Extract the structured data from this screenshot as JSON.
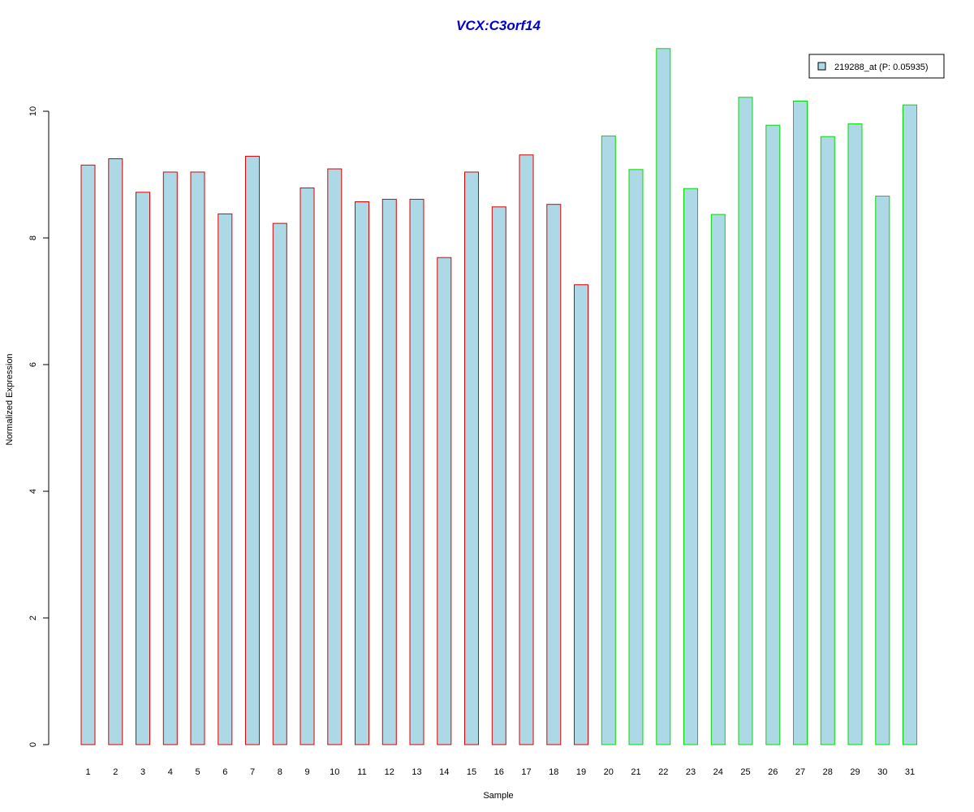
{
  "chart_data": {
    "type": "bar",
    "title": "VCX:C3orf14",
    "xlabel": "Sample",
    "ylabel": "Normalized Expression",
    "categories": [
      "1",
      "2",
      "3",
      "4",
      "5",
      "6",
      "7",
      "8",
      "9",
      "10",
      "11",
      "12",
      "13",
      "14",
      "15",
      "16",
      "17",
      "18",
      "19",
      "20",
      "21",
      "22",
      "23",
      "24",
      "25",
      "26",
      "27",
      "28",
      "29",
      "30",
      "31"
    ],
    "series": [
      {
        "name": "219288_at (P: 0.05935)",
        "values": [
          9.15,
          9.25,
          8.72,
          9.04,
          9.04,
          8.38,
          9.29,
          8.23,
          8.79,
          9.09,
          8.57,
          8.61,
          8.61,
          7.69,
          9.04,
          8.49,
          9.31,
          8.53,
          7.26,
          9.61,
          9.08,
          10.99,
          8.78,
          8.37,
          10.22,
          9.78,
          10.16,
          9.6,
          9.8,
          8.66,
          10.1
        ]
      }
    ],
    "groups": [
      {
        "samples": [
          1,
          19
        ],
        "border_color": "#dd0000"
      },
      {
        "samples": [
          20,
          31
        ],
        "border_color": "#00dd00"
      }
    ],
    "ylim": [
      0,
      11
    ],
    "yticks": [
      0,
      2,
      4,
      6,
      8,
      10
    ],
    "grid": false,
    "legend_position": "top-right",
    "colors": {
      "bar_fill": "#add8e6",
      "title": "#0000cc"
    }
  }
}
